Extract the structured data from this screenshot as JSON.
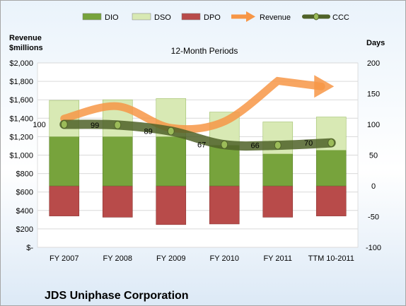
{
  "chart_data": {
    "type": "bar",
    "title": "12-Month Periods",
    "company": "JDS Uniphase Corporation",
    "categories": [
      "FY 2007",
      "FY 2008",
      "FY 2009",
      "FY 2010",
      "FY 2011",
      "TTM 10-2011"
    ],
    "left_axis": {
      "label_line1": "Revenue",
      "label_line2": "$millions",
      "ylim": [
        0,
        2000
      ],
      "ticks": [
        0,
        200,
        400,
        600,
        800,
        1000,
        1200,
        1400,
        1600,
        1800,
        2000
      ],
      "tick_labels": [
        "$-",
        "$200",
        "$400",
        "$600",
        "$800",
        "$1,000",
        "$1,200",
        "$1,400",
        "$1,600",
        "$1,800",
        "$2,000"
      ]
    },
    "right_axis": {
      "label": "Days",
      "ylim": [
        -100,
        200
      ],
      "ticks": [
        -100,
        -50,
        0,
        50,
        100,
        150,
        200
      ],
      "tick_labels": [
        "-100",
        "-50",
        "0",
        "50",
        "100",
        "150",
        "200"
      ]
    },
    "legend_position": "top",
    "series": [
      {
        "name": "DIO",
        "kind": "bar",
        "axis": "right",
        "color": "#77a33c",
        "values": [
          80,
          80,
          80,
          66,
          52,
          58
        ]
      },
      {
        "name": "DSO",
        "kind": "bar",
        "axis": "right",
        "color": "#d8e9b4",
        "values": [
          59,
          60,
          62,
          54,
          52,
          54
        ]
      },
      {
        "name": "DPO",
        "kind": "bar",
        "axis": "right",
        "color": "#b84b4a",
        "values": [
          -49,
          -51,
          -63,
          -62,
          -51,
          -49
        ]
      },
      {
        "name": "Revenue",
        "kind": "line",
        "axis": "left",
        "color": "#f79646",
        "values": [
          1396,
          1530,
          1295,
          1365,
          1805,
          1745
        ]
      },
      {
        "name": "CCC",
        "kind": "line",
        "axis": "right",
        "color": "#4f6228",
        "values": [
          100,
          99,
          89,
          67,
          66,
          70
        ],
        "labels": [
          "100",
          "99",
          "89",
          "67",
          "66",
          "70"
        ]
      }
    ]
  }
}
